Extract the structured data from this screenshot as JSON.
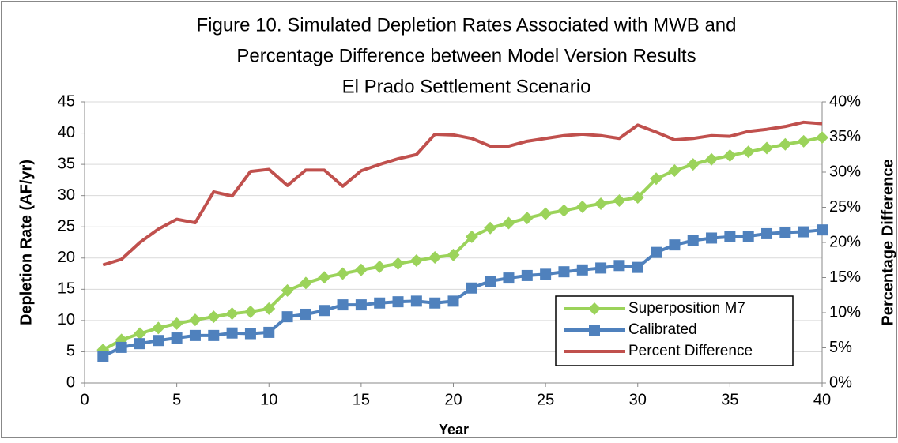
{
  "chart_data": {
    "type": "line",
    "title": [
      "Figure 10.  Simulated Depletion Rates Associated with MWB and",
      "Percentage Difference between Model Version Results",
      "El Prado Settlement Scenario"
    ],
    "x_label": "Year",
    "y_label": "Depletion Rate (AF/yr)",
    "y2_label": "Percentage Difference",
    "x": [
      1,
      2,
      3,
      4,
      5,
      6,
      7,
      8,
      9,
      10,
      11,
      12,
      13,
      14,
      15,
      16,
      17,
      18,
      19,
      20,
      21,
      22,
      23,
      24,
      25,
      26,
      27,
      28,
      29,
      30,
      31,
      32,
      33,
      34,
      35,
      36,
      37,
      38,
      39,
      40
    ],
    "xlim": [
      0,
      40
    ],
    "xticks": [
      0,
      5,
      10,
      15,
      20,
      25,
      30,
      35,
      40
    ],
    "ylim": [
      0,
      45
    ],
    "yticks": [
      0,
      5,
      10,
      15,
      20,
      25,
      30,
      35,
      40,
      45
    ],
    "y2lim": [
      0,
      40
    ],
    "y2ticks": [
      {
        "value": 0,
        "label": "0%"
      },
      {
        "value": 5,
        "label": "5%"
      },
      {
        "value": 10,
        "label": "10%"
      },
      {
        "value": 15,
        "label": "15%"
      },
      {
        "value": 20,
        "label": "20%"
      },
      {
        "value": 25,
        "label": "25%"
      },
      {
        "value": 30,
        "label": "30%"
      },
      {
        "value": 35,
        "label": "35%"
      },
      {
        "value": 40,
        "label": "40%"
      }
    ],
    "y2_color": "#c0504d",
    "grid": true,
    "legend": "lower right",
    "series": [
      {
        "name": "Superposition M7",
        "color": "#9bd35a",
        "marker": "diamond",
        "values": [
          5.3,
          6.9,
          7.9,
          8.8,
          9.5,
          10.1,
          10.6,
          11.1,
          11.4,
          11.9,
          14.8,
          16.0,
          16.9,
          17.5,
          18.1,
          18.6,
          19.1,
          19.6,
          20.1,
          20.5,
          23.4,
          24.8,
          25.6,
          26.4,
          27.1,
          27.6,
          28.2,
          28.7,
          29.2,
          29.7,
          32.7,
          34.0,
          35.0,
          35.8,
          36.4,
          37.0,
          37.6,
          38.2,
          38.7,
          39.3
        ]
      },
      {
        "name": "Calibrated",
        "color": "#4f81bd",
        "marker": "square",
        "values": [
          4.3,
          5.7,
          6.3,
          6.8,
          7.2,
          7.6,
          7.6,
          8.0,
          7.9,
          8.1,
          10.6,
          11.0,
          11.6,
          12.5,
          12.5,
          12.8,
          13.0,
          13.1,
          12.8,
          13.1,
          15.2,
          16.3,
          16.8,
          17.2,
          17.4,
          17.8,
          18.1,
          18.4,
          18.8,
          18.5,
          20.9,
          22.1,
          22.8,
          23.2,
          23.4,
          23.5,
          23.9,
          24.1,
          24.2,
          24.5
        ]
      },
      {
        "name": "Percent Difference",
        "color": "#c0504d",
        "marker": "none",
        "axis": "y2",
        "values": [
          16.8,
          17.6,
          20.0,
          21.9,
          23.3,
          22.8,
          27.2,
          26.6,
          30.1,
          30.4,
          28.1,
          30.3,
          30.3,
          28.0,
          30.2,
          31.1,
          31.9,
          32.5,
          35.4,
          35.3,
          34.8,
          33.7,
          33.7,
          34.4,
          34.8,
          35.2,
          35.4,
          35.2,
          34.8,
          36.7,
          35.7,
          34.6,
          34.8,
          35.2,
          35.1,
          35.8,
          36.1,
          36.5,
          37.1,
          36.9
        ]
      }
    ]
  }
}
